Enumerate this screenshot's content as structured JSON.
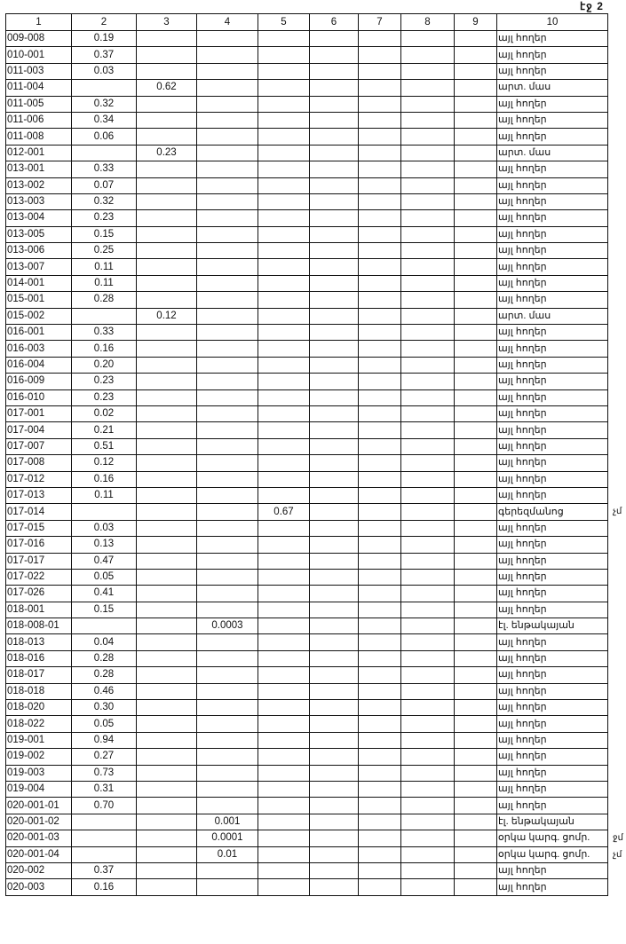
{
  "page_label": "էջ 2",
  "columns": [
    "1",
    "2",
    "3",
    "4",
    "5",
    "6",
    "7",
    "8",
    "9",
    "10"
  ],
  "rows": [
    {
      "c": [
        "009-008",
        "0.19",
        "",
        "",
        "",
        "",
        "",
        "",
        "",
        "այլ հողեր"
      ]
    },
    {
      "c": [
        "010-001",
        "0.37",
        "",
        "",
        "",
        "",
        "",
        "",
        "",
        "այլ հողեր"
      ]
    },
    {
      "c": [
        "011-003",
        "0.03",
        "",
        "",
        "",
        "",
        "",
        "",
        "",
        "այլ հողեր"
      ]
    },
    {
      "c": [
        "011-004",
        "",
        "0.62",
        "",
        "",
        "",
        "",
        "",
        "",
        "արտ. մաս"
      ]
    },
    {
      "c": [
        "011-005",
        "0.32",
        "",
        "",
        "",
        "",
        "",
        "",
        "",
        "այլ հողեր"
      ]
    },
    {
      "c": [
        "011-006",
        "0.34",
        "",
        "",
        "",
        "",
        "",
        "",
        "",
        "այլ հողեր"
      ]
    },
    {
      "c": [
        "011-008",
        "0.06",
        "",
        "",
        "",
        "",
        "",
        "",
        "",
        "այլ հողեր"
      ]
    },
    {
      "c": [
        "012-001",
        "",
        "0.23",
        "",
        "",
        "",
        "",
        "",
        "",
        "արտ. մաս"
      ]
    },
    {
      "c": [
        "013-001",
        "0.33",
        "",
        "",
        "",
        "",
        "",
        "",
        "",
        "այլ հողեր"
      ]
    },
    {
      "c": [
        "013-002",
        "0.07",
        "",
        "",
        "",
        "",
        "",
        "",
        "",
        "այլ հողեր"
      ]
    },
    {
      "c": [
        "013-003",
        "0.32",
        "",
        "",
        "",
        "",
        "",
        "",
        "",
        "այլ հողեր"
      ]
    },
    {
      "c": [
        "013-004",
        "0.23",
        "",
        "",
        "",
        "",
        "",
        "",
        "",
        "այլ հողեր"
      ]
    },
    {
      "c": [
        "013-005",
        "0.15",
        "",
        "",
        "",
        "",
        "",
        "",
        "",
        "այլ հողեր"
      ]
    },
    {
      "c": [
        "013-006",
        "0.25",
        "",
        "",
        "",
        "",
        "",
        "",
        "",
        "այլ հողեր"
      ]
    },
    {
      "c": [
        "013-007",
        "0.11",
        "",
        "",
        "",
        "",
        "",
        "",
        "",
        "այլ հողեր"
      ]
    },
    {
      "c": [
        "014-001",
        "0.11",
        "",
        "",
        "",
        "",
        "",
        "",
        "",
        "այլ հողեր"
      ]
    },
    {
      "c": [
        "015-001",
        "0.28",
        "",
        "",
        "",
        "",
        "",
        "",
        "",
        "այլ հողեր"
      ]
    },
    {
      "c": [
        "015-002",
        "",
        "0.12",
        "",
        "",
        "",
        "",
        "",
        "",
        "արտ. մաս"
      ]
    },
    {
      "c": [
        "016-001",
        "0.33",
        "",
        "",
        "",
        "",
        "",
        "",
        "",
        "այլ հողեր"
      ]
    },
    {
      "c": [
        "016-003",
        "0.16",
        "",
        "",
        "",
        "",
        "",
        "",
        "",
        "այլ հողեր"
      ]
    },
    {
      "c": [
        "016-004",
        "0.20",
        "",
        "",
        "",
        "",
        "",
        "",
        "",
        "այլ հողեր"
      ]
    },
    {
      "c": [
        "016-009",
        "0.23",
        "",
        "",
        "",
        "",
        "",
        "",
        "",
        "այլ հողեր"
      ]
    },
    {
      "c": [
        "016-010",
        "0.23",
        "",
        "",
        "",
        "",
        "",
        "",
        "",
        "այլ հողեր"
      ]
    },
    {
      "c": [
        "017-001",
        "0.02",
        "",
        "",
        "",
        "",
        "",
        "",
        "",
        "այլ հողեր"
      ]
    },
    {
      "c": [
        "017-004",
        "0.21",
        "",
        "",
        "",
        "",
        "",
        "",
        "",
        "այլ հողեր"
      ]
    },
    {
      "c": [
        "017-007",
        "0.51",
        "",
        "",
        "",
        "",
        "",
        "",
        "",
        "այլ հողեր"
      ]
    },
    {
      "c": [
        "017-008",
        "0.12",
        "",
        "",
        "",
        "",
        "",
        "",
        "",
        "այլ հողեր"
      ]
    },
    {
      "c": [
        "017-012",
        "0.16",
        "",
        "",
        "",
        "",
        "",
        "",
        "",
        "այլ հողեր"
      ]
    },
    {
      "c": [
        "017-013",
        "0.11",
        "",
        "",
        "",
        "",
        "",
        "",
        "",
        "այլ հողեր"
      ]
    },
    {
      "c": [
        "017-014",
        "",
        "",
        "",
        "0.67",
        "",
        "",
        "",
        "",
        "գերեզմանոց"
      ],
      "note": "չմ"
    },
    {
      "c": [
        "017-015",
        "0.03",
        "",
        "",
        "",
        "",
        "",
        "",
        "",
        "այլ հողեր"
      ]
    },
    {
      "c": [
        "017-016",
        "0.13",
        "",
        "",
        "",
        "",
        "",
        "",
        "",
        "այլ հողեր"
      ]
    },
    {
      "c": [
        "017-017",
        "0.47",
        "",
        "",
        "",
        "",
        "",
        "",
        "",
        "այլ հողեր"
      ]
    },
    {
      "c": [
        "017-022",
        "0.05",
        "",
        "",
        "",
        "",
        "",
        "",
        "",
        "այլ հողեր"
      ]
    },
    {
      "c": [
        "017-026",
        "0.41",
        "",
        "",
        "",
        "",
        "",
        "",
        "",
        "այլ հողեր"
      ]
    },
    {
      "c": [
        "018-001",
        "0.15",
        "",
        "",
        "",
        "",
        "",
        "",
        "",
        "այլ հողեր"
      ]
    },
    {
      "c": [
        "018-008-01",
        "",
        "",
        "0.0003",
        "",
        "",
        "",
        "",
        "",
        "էլ. ենթակայան"
      ]
    },
    {
      "c": [
        "018-013",
        "0.04",
        "",
        "",
        "",
        "",
        "",
        "",
        "",
        "այլ հողեր"
      ]
    },
    {
      "c": [
        "018-016",
        "0.28",
        "",
        "",
        "",
        "",
        "",
        "",
        "",
        "այլ հողեր"
      ]
    },
    {
      "c": [
        "018-017",
        "0.28",
        "",
        "",
        "",
        "",
        "",
        "",
        "",
        "այլ հողեր"
      ]
    },
    {
      "c": [
        "018-018",
        "0.46",
        "",
        "",
        "",
        "",
        "",
        "",
        "",
        "այլ հողեր"
      ]
    },
    {
      "c": [
        "018-020",
        "0.30",
        "",
        "",
        "",
        "",
        "",
        "",
        "",
        "այլ հողեր"
      ]
    },
    {
      "c": [
        "018-022",
        "0.05",
        "",
        "",
        "",
        "",
        "",
        "",
        "",
        "այլ հողեր"
      ]
    },
    {
      "c": [
        "019-001",
        "0.94",
        "",
        "",
        "",
        "",
        "",
        "",
        "",
        "այլ հողեր"
      ]
    },
    {
      "c": [
        "019-002",
        "0.27",
        "",
        "",
        "",
        "",
        "",
        "",
        "",
        "այլ հողեր"
      ]
    },
    {
      "c": [
        "019-003",
        "0.73",
        "",
        "",
        "",
        "",
        "",
        "",
        "",
        "այլ հողեր"
      ]
    },
    {
      "c": [
        "019-004",
        "0.31",
        "",
        "",
        "",
        "",
        "",
        "",
        "",
        "այլ հողեր"
      ]
    },
    {
      "c": [
        "020-001-01",
        "0.70",
        "",
        "",
        "",
        "",
        "",
        "",
        "",
        "այլ հողեր"
      ]
    },
    {
      "c": [
        "020-001-02",
        "",
        "",
        "0.001",
        "",
        "",
        "",
        "",
        "",
        "էլ. ենթակայան"
      ]
    },
    {
      "c": [
        "020-001-03",
        "",
        "",
        "0.0001",
        "",
        "",
        "",
        "",
        "",
        "օրկա կարգ. ցոմր."
      ],
      "note": "ջմ"
    },
    {
      "c": [
        "020-001-04",
        "",
        "",
        "0.01",
        "",
        "",
        "",
        "",
        "",
        "օրկա կարգ. ցոմր."
      ],
      "note": "չմ"
    },
    {
      "c": [
        "020-002",
        "0.37",
        "",
        "",
        "",
        "",
        "",
        "",
        "",
        "այլ հողեր"
      ]
    },
    {
      "c": [
        "020-003",
        "0.16",
        "",
        "",
        "",
        "",
        "",
        "",
        "",
        "այլ հողեր"
      ]
    }
  ]
}
